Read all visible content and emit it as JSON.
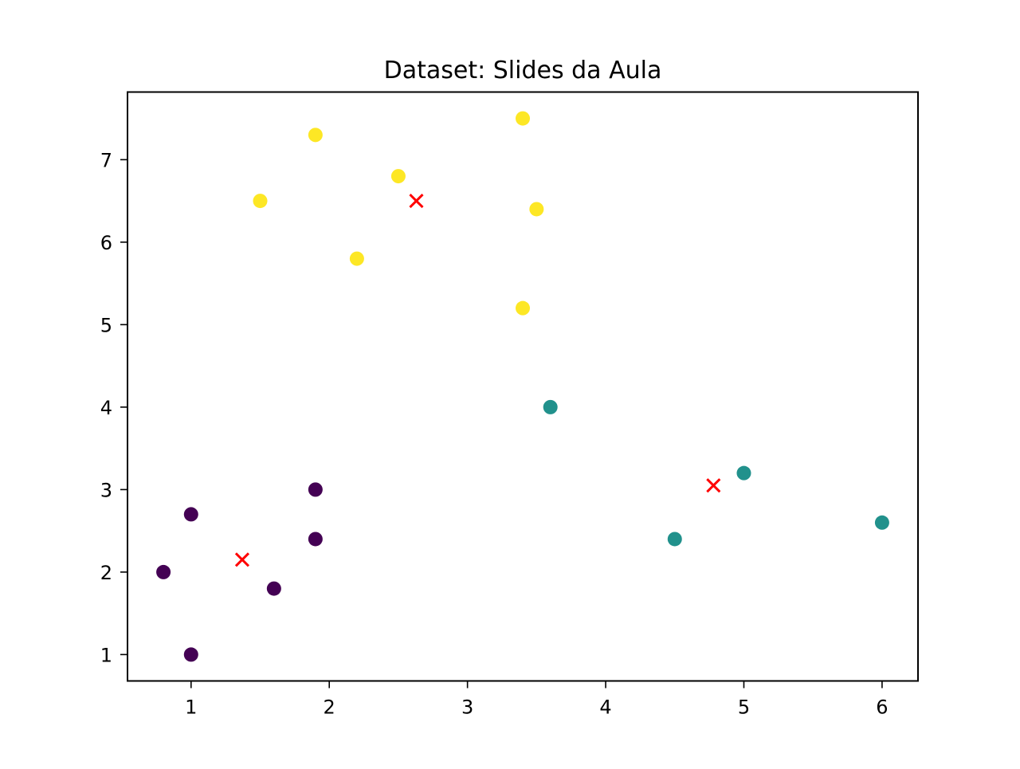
{
  "chart_data": {
    "type": "scatter",
    "title": "Dataset: Slides da Aula",
    "xlabel": "",
    "ylabel": "",
    "xlim": [
      0.54,
      6.26
    ],
    "ylim": [
      0.68,
      7.82
    ],
    "x_ticks": [
      1,
      2,
      3,
      4,
      5,
      6
    ],
    "y_ticks": [
      1,
      2,
      3,
      4,
      5,
      6,
      7
    ],
    "grid": false,
    "legend": "none",
    "series": [
      {
        "color": "#440154",
        "marker": "circle",
        "points": [
          {
            "x": 1.0,
            "y": 1.0
          },
          {
            "x": 0.8,
            "y": 2.0
          },
          {
            "x": 1.0,
            "y": 2.7
          },
          {
            "x": 1.6,
            "y": 1.8
          },
          {
            "x": 1.9,
            "y": 2.4
          },
          {
            "x": 1.9,
            "y": 3.0
          }
        ]
      },
      {
        "color": "#21918c",
        "marker": "circle",
        "points": [
          {
            "x": 3.6,
            "y": 4.0
          },
          {
            "x": 4.5,
            "y": 2.4
          },
          {
            "x": 5.0,
            "y": 3.2
          },
          {
            "x": 6.0,
            "y": 2.6
          }
        ]
      },
      {
        "color": "#fde725",
        "marker": "circle",
        "points": [
          {
            "x": 1.5,
            "y": 6.5
          },
          {
            "x": 1.9,
            "y": 7.3
          },
          {
            "x": 2.2,
            "y": 5.8
          },
          {
            "x": 2.5,
            "y": 6.8
          },
          {
            "x": 3.4,
            "y": 7.5
          },
          {
            "x": 3.5,
            "y": 6.4
          },
          {
            "x": 3.4,
            "y": 5.2
          }
        ]
      },
      {
        "color": "#ff0000",
        "marker": "x",
        "points": [
          {
            "x": 1.37,
            "y": 2.15
          },
          {
            "x": 2.63,
            "y": 6.5
          },
          {
            "x": 4.78,
            "y": 3.05
          }
        ]
      }
    ]
  }
}
